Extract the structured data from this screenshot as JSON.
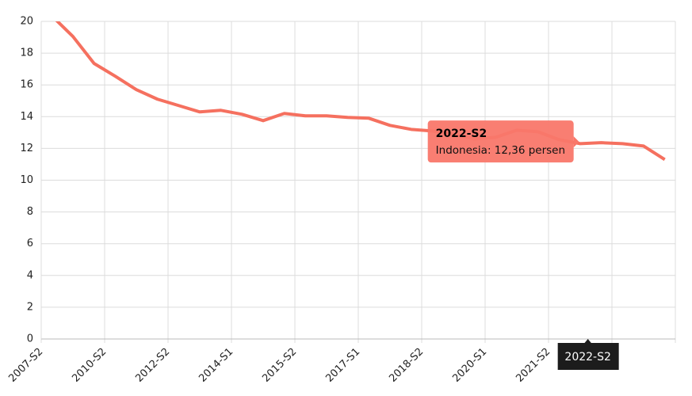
{
  "chart_data": {
    "type": "line",
    "categories": [
      "2007-S2",
      null,
      null,
      "2010-S2",
      null,
      null,
      "2012-S2",
      null,
      null,
      "2014-S1",
      null,
      null,
      "2015-S2",
      null,
      null,
      "2017-S1",
      null,
      null,
      "2018-S2",
      null,
      null,
      "2020-S1",
      null,
      null,
      "2021-S2",
      null,
      "2022-S2",
      null,
      null,
      null
    ],
    "series": [
      {
        "name": "Indonesia",
        "color": "#f5705f",
        "values": [
          20.35,
          19.05,
          17.35,
          16.55,
          15.7,
          15.1,
          14.7,
          14.3,
          14.4,
          14.15,
          13.75,
          14.2,
          14.05,
          14.05,
          13.95,
          13.9,
          13.45,
          13.2,
          13.1,
          12.9,
          12.6,
          12.7,
          13.15,
          13.05,
          12.55,
          12.3,
          12.36,
          12.3,
          12.15,
          11.3
        ]
      }
    ],
    "ylim": [
      0,
      20
    ],
    "yticks": [
      0,
      2,
      4,
      6,
      8,
      10,
      12,
      14,
      16,
      18,
      20
    ],
    "grid": true,
    "tooltip": {
      "title": "2022-S2",
      "label": "Indonesia: 12,36 persen",
      "index": 26
    }
  }
}
